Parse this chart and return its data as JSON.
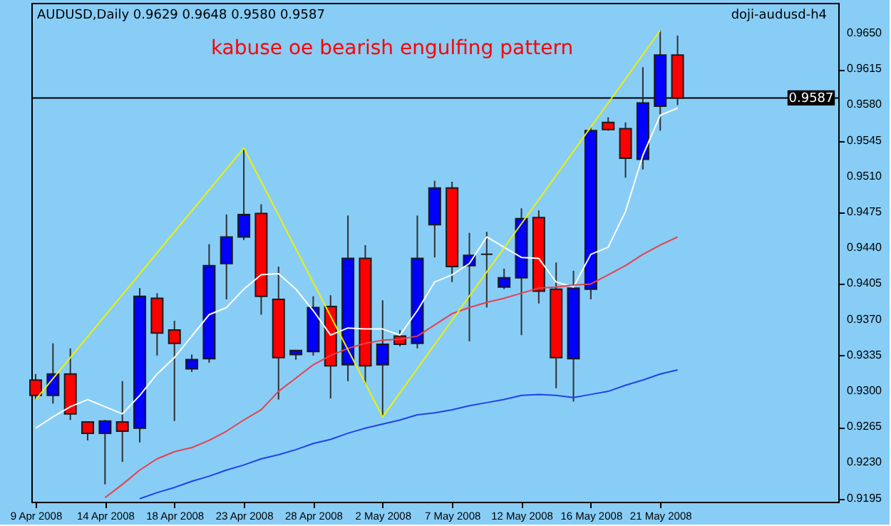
{
  "chart_data": {
    "type": "candlestick",
    "title": "AUDUSD,Daily  0.9629 0.9648 0.9580 0.9587",
    "annotations": [
      "kabuse oe bearish engulfing pattern",
      "doji-audusd-h4"
    ],
    "categories": [
      "9 Apr 2008",
      null,
      null,
      null,
      "14 Apr 2008",
      null,
      null,
      null,
      "18 Apr 2008",
      null,
      null,
      null,
      "23 Apr 2008",
      null,
      null,
      null,
      "28 Apr 2008",
      null,
      null,
      null,
      "2 May 2008",
      null,
      null,
      null,
      "7 May 2008",
      null,
      null,
      null,
      "12 May 2008",
      null,
      null,
      null,
      "16 May 2008",
      null,
      null,
      null,
      "21 May 2008",
      null
    ],
    "ohlc": [
      [
        0.9311,
        0.9317,
        0.9292,
        0.9296
      ],
      [
        0.9296,
        0.9347,
        0.9288,
        0.9317
      ],
      [
        0.9317,
        0.9342,
        0.9272,
        0.9278
      ],
      [
        0.927,
        0.927,
        0.9252,
        0.9259
      ],
      [
        0.9259,
        0.9272,
        0.9209,
        0.9271
      ],
      [
        0.927,
        0.931,
        0.9231,
        0.9261
      ],
      [
        0.9264,
        0.9401,
        0.925,
        0.9393
      ],
      [
        0.9391,
        0.9396,
        0.9335,
        0.9357
      ],
      [
        0.936,
        0.9369,
        0.9271,
        0.9347
      ],
      [
        0.9322,
        0.9336,
        0.9319,
        0.9331
      ],
      [
        0.9332,
        0.9444,
        0.9328,
        0.9423
      ],
      [
        0.9425,
        0.9473,
        0.939,
        0.9451
      ],
      [
        0.9451,
        0.9538,
        0.9448,
        0.9473
      ],
      [
        0.9474,
        0.9483,
        0.9375,
        0.9393
      ],
      [
        0.939,
        0.9422,
        0.9292,
        0.9333
      ],
      [
        0.9336,
        0.934,
        0.9331,
        0.934
      ],
      [
        0.9339,
        0.9393,
        0.9335,
        0.9382
      ],
      [
        0.9383,
        0.9394,
        0.9293,
        0.9325
      ],
      [
        0.9326,
        0.9472,
        0.931,
        0.943
      ],
      [
        0.943,
        0.9443,
        0.9307,
        0.9325
      ],
      [
        0.9326,
        0.9389,
        0.9275,
        0.9346
      ],
      [
        0.9354,
        0.936,
        0.9344,
        0.9346
      ],
      [
        0.9347,
        0.9472,
        0.9342,
        0.943
      ],
      [
        0.9463,
        0.9506,
        0.9431,
        0.9499
      ],
      [
        0.9499,
        0.9505,
        0.9407,
        0.9422
      ],
      [
        0.9423,
        0.9455,
        0.9349,
        0.9433
      ],
      [
        0.9434,
        0.9456,
        0.9382,
        0.9434
      ],
      [
        0.9402,
        0.942,
        0.94,
        0.9411
      ],
      [
        0.9411,
        0.9479,
        0.9355,
        0.9469
      ],
      [
        0.947,
        0.9477,
        0.9386,
        0.9398
      ],
      [
        0.94,
        0.9426,
        0.9303,
        0.9333
      ],
      [
        0.9332,
        0.9418,
        0.929,
        0.9401
      ],
      [
        0.94,
        0.9559,
        0.939,
        0.9555
      ],
      [
        0.9563,
        0.9568,
        0.9555,
        0.9556
      ],
      [
        0.9557,
        0.9563,
        0.9509,
        0.9528
      ],
      [
        0.9527,
        0.9617,
        0.9517,
        0.9582
      ],
      [
        0.9579,
        0.9653,
        0.9555,
        0.9629
      ],
      [
        0.9629,
        0.9648,
        0.958,
        0.9587
      ]
    ],
    "colors": [
      "#ff0000",
      "#0000ff",
      "#ff0000",
      "#ff0000",
      "#0000ff",
      "#ff0000",
      "#0000ff",
      "#ff0000",
      "#ff0000",
      "#0000ff",
      "#0000ff",
      "#0000ff",
      "#0000ff",
      "#ff0000",
      "#ff0000",
      "#0000ff",
      "#0000ff",
      "#ff0000",
      "#0000ff",
      "#ff0000",
      "#0000ff",
      "#ff0000",
      "#0000ff",
      "#0000ff",
      "#ff0000",
      "#0000ff",
      "#1a1a1a",
      "#0000ff",
      "#0000ff",
      "#ff0000",
      "#ff0000",
      "#0000ff",
      "#0000ff",
      "#ff0000",
      "#ff0000",
      "#0000ff",
      "#0000ff",
      "#ff0000"
    ],
    "series": [
      {
        "type": "line",
        "color": "#ffffff",
        "values": [
          0.9264,
          0.9275,
          0.9285,
          0.9292,
          0.9285,
          0.9278,
          0.9296,
          0.9317,
          0.9333,
          0.9354,
          0.9375,
          0.9382,
          0.94,
          0.9414,
          0.9415,
          0.94,
          0.9379,
          0.9355,
          0.9362,
          0.9361,
          0.9361,
          0.9355,
          0.9379,
          0.9407,
          0.9414,
          0.9425,
          0.9451,
          0.9441,
          0.9431,
          0.943,
          0.9407,
          0.9402,
          0.9434,
          0.9441,
          0.9476,
          0.9531,
          0.957,
          0.9577
        ]
      },
      {
        "type": "line",
        "color": "#e8404a",
        "values": [
          null,
          null,
          null,
          null,
          0.9196,
          0.9209,
          0.9223,
          0.9234,
          0.9241,
          0.9245,
          0.9252,
          0.9261,
          0.9272,
          0.9282,
          0.93,
          0.9313,
          0.9326,
          0.9335,
          0.9342,
          0.9347,
          0.935,
          0.9351,
          0.9354,
          0.9365,
          0.9376,
          0.9382,
          0.9387,
          0.9391,
          0.9396,
          0.9401,
          0.9402,
          0.9404,
          0.9405,
          0.9414,
          0.9423,
          0.9434,
          0.9443,
          0.9451
        ]
      },
      {
        "type": "line",
        "color": "#2040f0",
        "values": [
          null,
          null,
          null,
          null,
          null,
          null,
          0.9195,
          0.9201,
          0.9206,
          0.9212,
          0.9217,
          0.9223,
          0.9228,
          0.9234,
          0.9238,
          0.9243,
          0.9249,
          0.9253,
          0.9259,
          0.9264,
          0.9268,
          0.9272,
          0.9277,
          0.9279,
          0.9282,
          0.9286,
          0.9289,
          0.9292,
          0.9296,
          0.9297,
          0.9296,
          0.9294,
          0.9297,
          0.93,
          0.9306,
          0.9311,
          0.9317,
          0.9321
        ]
      },
      {
        "type": "line",
        "color": "#f0f000",
        "x": [
          "9 Apr 2008",
          "23 Apr 2008",
          "2 May 2008",
          "21 May 2008"
        ],
        "values": [
          0.9292,
          0.9538,
          0.9275,
          0.9653
        ]
      }
    ],
    "ylim": [
      0.9192,
      0.968
    ],
    "yticks": [
      0.9195,
      {
        "value": 0.923,
        "label": "0.9230"
      },
      0.9265,
      {
        "value": 0.93,
        "label": "0.9300"
      },
      0.9335,
      {
        "value": 0.937,
        "label": "0.9370"
      },
      0.9405,
      {
        "value": 0.944,
        "label": "0.9440"
      },
      0.9475,
      {
        "value": 0.951,
        "label": "0.9510"
      },
      0.9545,
      {
        "value": 0.958,
        "label": "0.9580"
      },
      0.9615,
      {
        "value": 0.965,
        "label": "0.9650"
      }
    ],
    "ref_lines": [
      {
        "axis": "y",
        "value": 0.9587,
        "label": "0.9587",
        "color": "#000000"
      }
    ],
    "grid": false
  }
}
